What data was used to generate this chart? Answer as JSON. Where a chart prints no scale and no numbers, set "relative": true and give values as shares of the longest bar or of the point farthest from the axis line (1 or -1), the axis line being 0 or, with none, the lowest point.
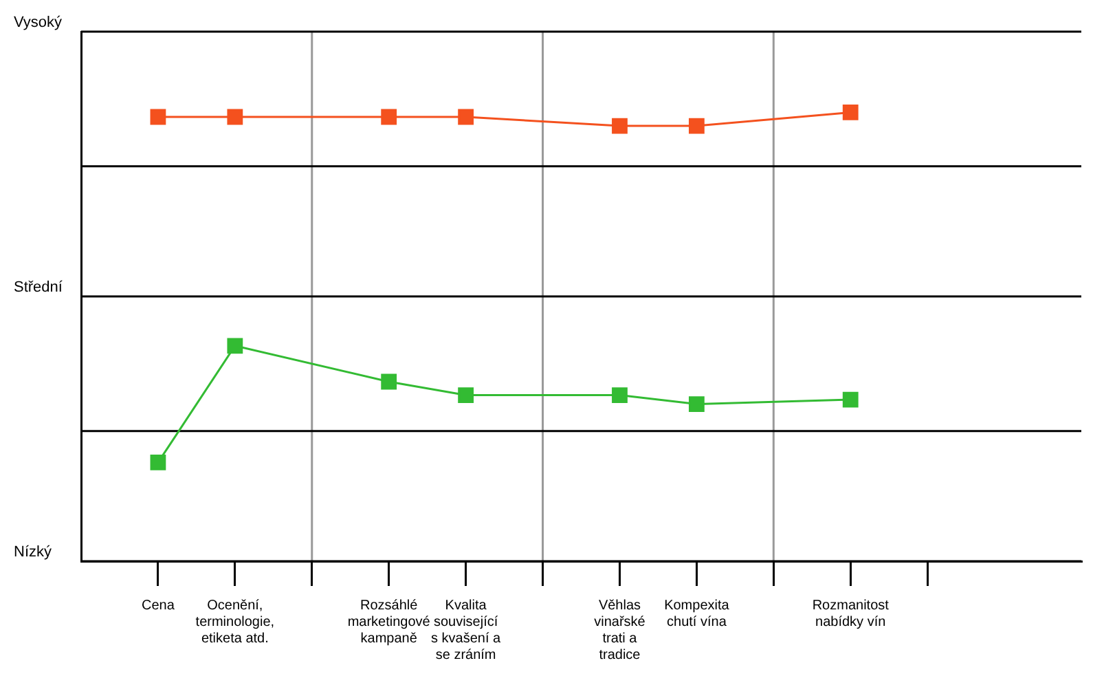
{
  "chart_data": {
    "type": "line",
    "relative": true,
    "categories": [
      "Cena",
      "Ocenění, terminologie, etiketa atd.",
      null,
      "Rozsáhlé marketingové kampaně",
      "Kvalita související s kvašení a se zráním",
      null,
      "Věhlas vinařské trati a tradice",
      "Kompexita chutí vína",
      null,
      "Rozmanitost nabídky vín",
      null
    ],
    "series": [
      {
        "color": "#f4511e",
        "values": [
          0.99,
          0.99,
          null,
          0.99,
          0.99,
          null,
          0.97,
          0.97,
          null,
          1,
          null
        ]
      },
      {
        "color": "#33bb33",
        "values": [
          0.22,
          0.48,
          null,
          0.4,
          0.37,
          null,
          0.37,
          0.35,
          null,
          0.36,
          null
        ]
      }
    ],
    "ref_lines": [
      {
        "axis": "y",
        "value": 0,
        "label": "Nízký",
        "color": "#000000"
      },
      {
        "axis": "y",
        "value": 0.29,
        "color": "#000000"
      },
      {
        "axis": "y",
        "value": 0.59,
        "label": "Střední",
        "color": "#000000"
      },
      {
        "axis": "y",
        "value": 0.88,
        "color": "#000000"
      },
      {
        "axis": "y",
        "value": 1.18,
        "label": "Vysoký",
        "color": "#000000"
      }
    ],
    "grid": "x",
    "legend": false,
    "marker": "square",
    "line_style": "solid"
  }
}
